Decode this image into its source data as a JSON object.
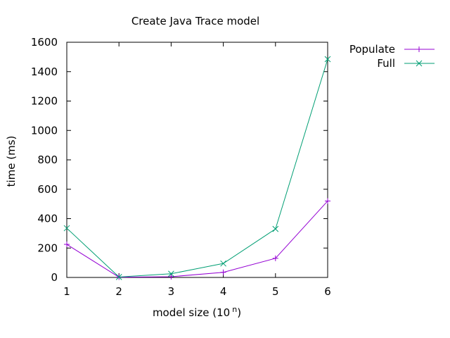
{
  "chart_data": {
    "type": "line",
    "title": "Create Java Trace model",
    "xlabel": "model size (10",
    "xlabel_superscript": "n",
    "xlabel_suffix": ")",
    "ylabel": "time (ms)",
    "xlim": [
      1,
      6
    ],
    "ylim": [
      0,
      1600
    ],
    "x_ticks": [
      1,
      2,
      3,
      4,
      5,
      6
    ],
    "y_ticks": [
      0,
      200,
      400,
      600,
      800,
      1000,
      1200,
      1400,
      1600
    ],
    "grid": false,
    "legend_position": "outside-right-top",
    "x": [
      1,
      2,
      3,
      4,
      5,
      6
    ],
    "series": [
      {
        "name": "Populate",
        "color": "#9400d3",
        "marker": "plus",
        "values": [
          225,
          2,
          5,
          35,
          130,
          520
        ]
      },
      {
        "name": "Full",
        "color": "#009e73",
        "marker": "cross",
        "values": [
          335,
          3,
          25,
          95,
          330,
          1485
        ]
      }
    ]
  }
}
